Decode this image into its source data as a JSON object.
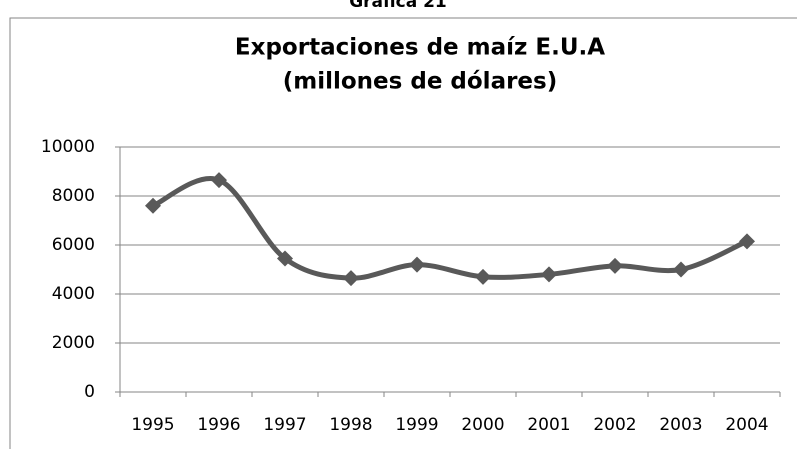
{
  "caption": "Gráfica 21",
  "chart_data": {
    "type": "line",
    "title": [
      "Exportaciones de maíz E.U.A",
      "(millones de dólares)"
    ],
    "categories": [
      "1995",
      "1996",
      "1997",
      "1998",
      "1999",
      "2000",
      "2001",
      "2002",
      "2003",
      "2004"
    ],
    "values": [
      7600,
      8650,
      5450,
      4650,
      5200,
      4700,
      4800,
      5150,
      5000,
      6150
    ],
    "color": "#595959",
    "ylim": [
      0,
      10000
    ],
    "yticks": [
      0,
      2000,
      4000,
      6000,
      8000,
      10000
    ],
    "grid": true
  }
}
